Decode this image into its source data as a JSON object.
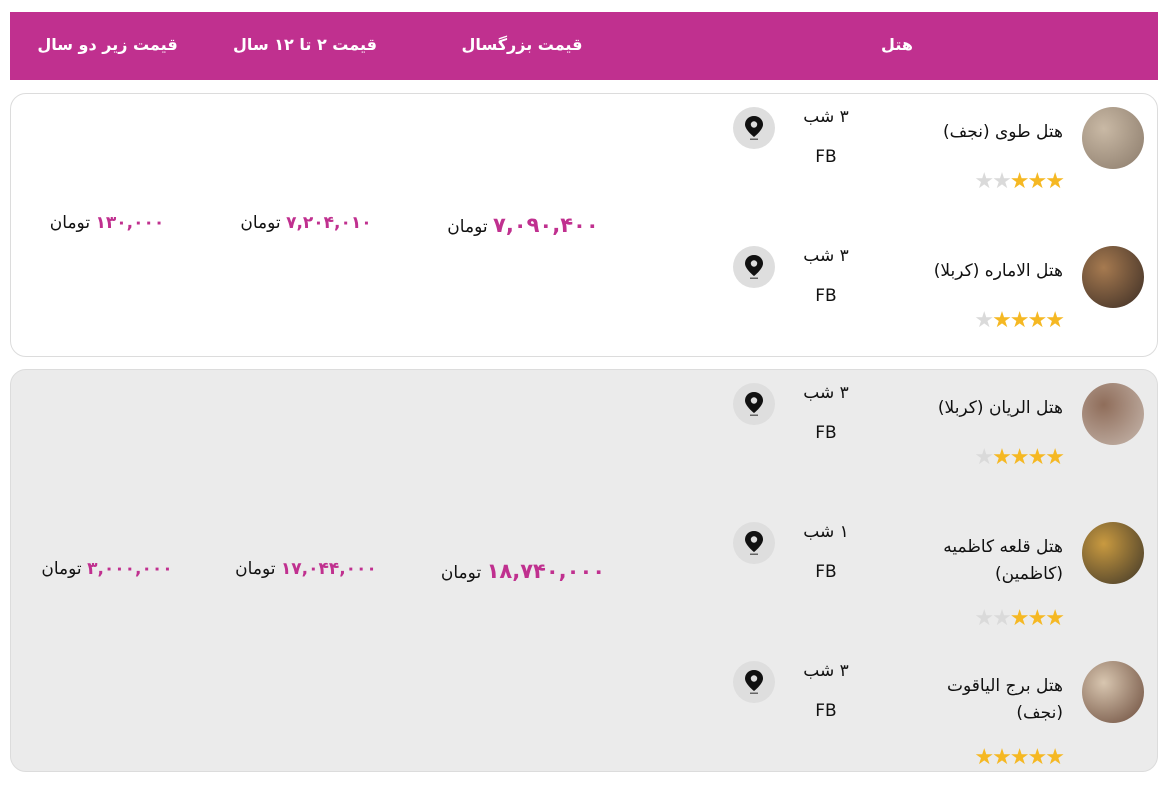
{
  "header": {
    "hotel": "هتل",
    "adult_price": "قیمت بزرگسال",
    "child_price": "قیمت ۲ تا ۱۲ سال",
    "infant_price": "قیمت زیر دو سال"
  },
  "currency": "تومان",
  "accent_color": "#c0308f",
  "packages": [
    {
      "adult_price": "۷,۰۹۰,۴۰۰",
      "child_price": "۷,۲۰۴,۰۱۰",
      "infant_price": "۱۳۰,۰۰۰",
      "hotels": [
        {
          "name": "هتل طوی (نجف)",
          "stars": 3,
          "nights": "۳ شب",
          "board": "FB"
        },
        {
          "name": "هتل الاماره (کربلا)",
          "stars": 4,
          "nights": "۳ شب",
          "board": "FB"
        }
      ]
    },
    {
      "adult_price": "۱۸,۷۴۰,۰۰۰",
      "child_price": "۱۷,۰۴۴,۰۰۰",
      "infant_price": "۳,۰۰۰,۰۰۰",
      "hotels": [
        {
          "name": "هتل الریان (کربلا)",
          "stars": 4,
          "nights": "۳ شب",
          "board": "FB"
        },
        {
          "name": "هتل قلعه کاظمیه (کاظمین)",
          "stars": 3,
          "nights": "۱ شب",
          "board": "FB"
        },
        {
          "name": "هتل برج الیاقوت (نجف)",
          "stars": 5,
          "nights": "۳ شب",
          "board": "FB"
        }
      ]
    }
  ]
}
